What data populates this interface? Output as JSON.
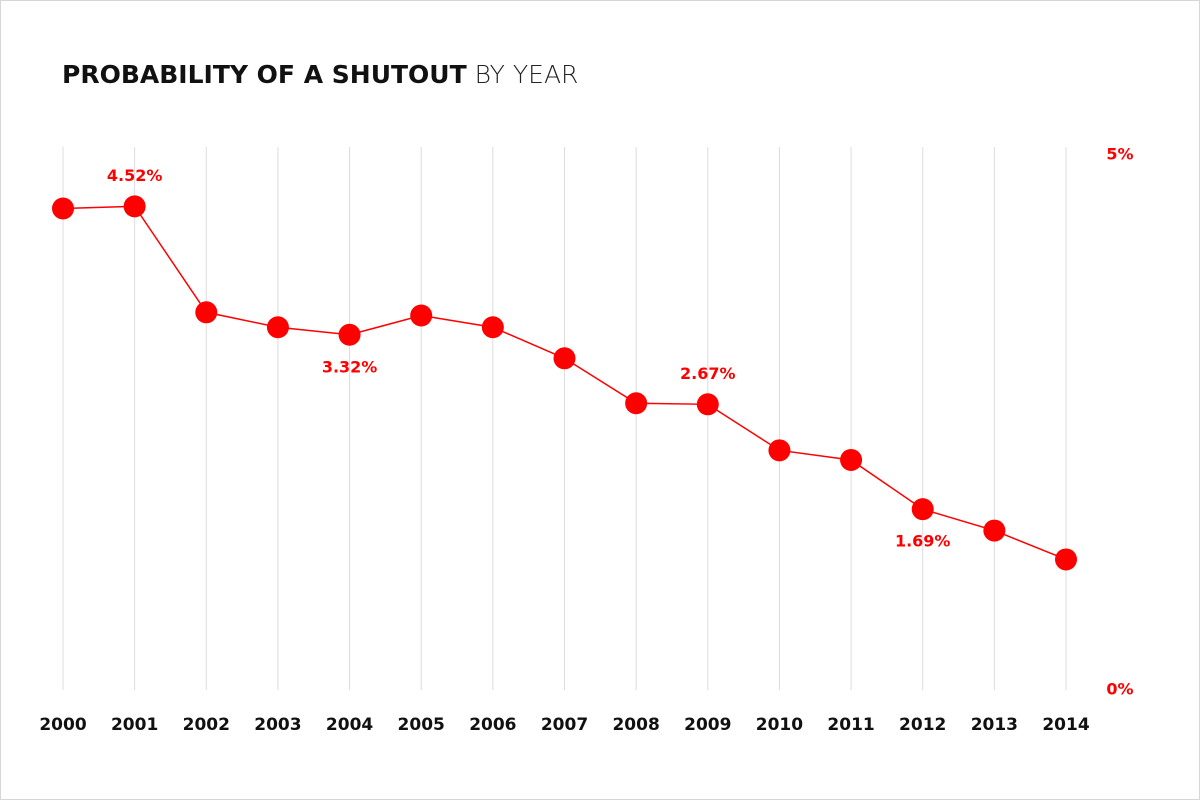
{
  "chart_data": {
    "type": "line",
    "title": [
      "PROBABILITY OF A SHUTOUT",
      "BY YEAR"
    ],
    "categories": [
      "2000",
      "2001",
      "2002",
      "2003",
      "2004",
      "2005",
      "2006",
      "2007",
      "2008",
      "2009",
      "2010",
      "2011",
      "2012",
      "2013",
      "2014"
    ],
    "values": [
      4.5,
      4.52,
      3.53,
      3.39,
      3.32,
      3.5,
      3.39,
      3.1,
      2.68,
      2.67,
      2.24,
      2.15,
      1.69,
      1.49,
      1.22
    ],
    "value_labels": [
      null,
      "4.52%",
      null,
      null,
      "3.32%",
      null,
      null,
      null,
      null,
      "2.67%",
      null,
      null,
      "1.69%",
      null,
      null
    ],
    "color": "#ff0000",
    "ylim": [
      0,
      5
    ],
    "yticks": [
      {
        "value": 0,
        "label": "0%"
      },
      {
        "value": 5,
        "label": "5%"
      }
    ],
    "y_axis_side": "right",
    "grid": true
  }
}
